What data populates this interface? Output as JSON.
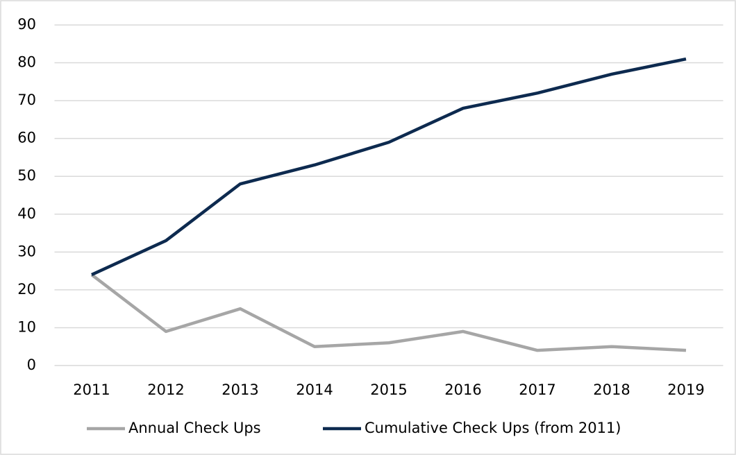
{
  "chart_data": {
    "type": "line",
    "categories": [
      "2011",
      "2012",
      "2013",
      "2014",
      "2015",
      "2016",
      "2017",
      "2018",
      "2019"
    ],
    "series": [
      {
        "name": "Annual Check Ups",
        "color": "#a6a6a6",
        "values": [
          24,
          9,
          15,
          5,
          6,
          9,
          4,
          5,
          4
        ]
      },
      {
        "name": "Cumulative Check Ups (from 2011)",
        "color": "#0d2a4f",
        "values": [
          24,
          33,
          48,
          53,
          59,
          68,
          72,
          77,
          81
        ]
      }
    ],
    "ylim": [
      0,
      90
    ],
    "yticks": [
      0,
      10,
      20,
      30,
      40,
      50,
      60,
      70,
      80,
      90
    ],
    "grid": true,
    "legend": "bottom"
  }
}
